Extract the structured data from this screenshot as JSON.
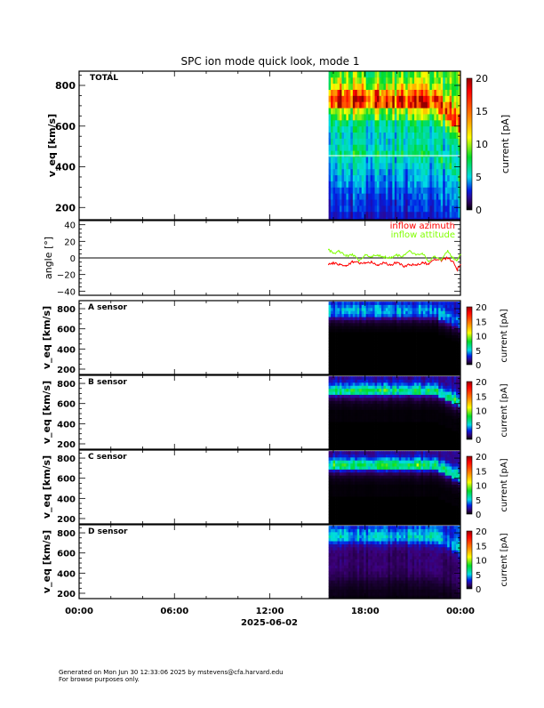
{
  "chart_data": {
    "type": "heatmap",
    "title": "SPC ion mode quick look, mode 1",
    "date_label": "2025-06-02",
    "x_ticks": [
      "00:00",
      "06:00",
      "12:00",
      "18:00",
      "00:00"
    ],
    "x_range_hours": [
      0,
      24
    ],
    "data_start_hour": 15.7,
    "velocity_bins_kms": [
      165,
      195,
      225,
      255,
      285,
      315,
      345,
      375,
      405,
      435,
      465,
      495,
      525,
      555,
      585,
      615,
      645,
      675,
      705,
      735,
      765,
      795,
      825,
      855
    ],
    "colorbar": {
      "label": "current [pA]",
      "range": [
        0,
        20
      ],
      "ticks": [
        "0",
        "5",
        "10",
        "15",
        "20"
      ]
    },
    "panels": [
      {
        "label": "TOTAL",
        "ylabel": "v_eq [km/s]",
        "yrange": [
          140,
          870
        ],
        "ticks": [
          "200",
          "400",
          "600",
          "800"
        ],
        "profile_pA": [
          2.5,
          3,
          3,
          3.3,
          3.6,
          4,
          4.3,
          4.6,
          5,
          5.3,
          6.5,
          5.8,
          5.5,
          5.5,
          6,
          6.5,
          8.5,
          10,
          16,
          16.5,
          14,
          11,
          9.5,
          8.5
        ]
      },
      {
        "label": "A sensor",
        "ylabel": "v_eq [km/s]",
        "yrange": [
          147,
          880
        ],
        "ticks": [
          "200",
          "400",
          "600",
          "800"
        ],
        "profile_pA": [
          0,
          0,
          0,
          0,
          0,
          0,
          0,
          0,
          0,
          0,
          0,
          0,
          0,
          0,
          0.1,
          0.2,
          0.4,
          0.8,
          1.8,
          3.5,
          4.2,
          4.5,
          3.8,
          3
        ]
      },
      {
        "label": "B sensor",
        "ylabel": "v_eq [km/s]",
        "yrange": [
          147,
          880
        ],
        "ticks": [
          "200",
          "400",
          "600",
          "800"
        ],
        "profile_pA": [
          0,
          0,
          0,
          0,
          0,
          0,
          0,
          0,
          0,
          0.1,
          0.1,
          0.1,
          0.1,
          0.2,
          0.3,
          0.5,
          1,
          2,
          6,
          7,
          5,
          3.5,
          2.5,
          2
        ]
      },
      {
        "label": "C sensor",
        "ylabel": "v_eq [km/s]",
        "yrange": [
          147,
          880
        ],
        "ticks": [
          "200",
          "400",
          "600",
          "800"
        ],
        "profile_pA": [
          0,
          0,
          0,
          0,
          0,
          0,
          0,
          0,
          0,
          0.1,
          0.1,
          0.1,
          0.1,
          0.2,
          0.3,
          0.5,
          1,
          2.5,
          6.5,
          7.5,
          6,
          4,
          2.5,
          2
        ]
      },
      {
        "label": "D sensor",
        "ylabel": "v_eq [km/s]",
        "yrange": [
          147,
          880
        ],
        "ticks": [
          "200",
          "400",
          "600",
          "800"
        ],
        "profile_pA": [
          0.2,
          0.3,
          0.3,
          0.4,
          0.5,
          0.6,
          0.8,
          1,
          1.1,
          1.2,
          1.3,
          1.3,
          1.3,
          1.3,
          1.3,
          1.4,
          1.6,
          2,
          3,
          4.5,
          5,
          4.5,
          4,
          3.2
        ]
      }
    ],
    "angle_panel": {
      "ylabel": "angle [°]",
      "yrange": [
        -45,
        45
      ],
      "ticks": [
        "-40",
        "-20",
        "0",
        "20",
        "40"
      ],
      "series": [
        {
          "name": "inflow azimuth",
          "color": "#ff0000",
          "hours": [
            15.7,
            16.0,
            16.4,
            16.8,
            17.2,
            17.6,
            18.0,
            18.4,
            18.8,
            19.2,
            19.6,
            20.0,
            20.4,
            20.8,
            21.2,
            21.6,
            22.0,
            22.4,
            22.8,
            23.2,
            23.5,
            23.8,
            24.0
          ],
          "values": [
            -8,
            -6,
            -8,
            -10,
            -5,
            -6,
            -7,
            -5,
            -8,
            -6,
            -9,
            -5,
            -10,
            -8,
            -9,
            -6,
            -7,
            -2,
            -3,
            0,
            -4,
            -14,
            -8
          ]
        },
        {
          "name": "inflow attitude",
          "color": "#80ff00",
          "hours": [
            15.7,
            16.0,
            16.4,
            16.8,
            17.2,
            17.6,
            18.0,
            18.4,
            18.8,
            19.2,
            19.6,
            20.0,
            20.4,
            20.8,
            21.2,
            21.6,
            22.0,
            22.4,
            22.8,
            23.2,
            23.5,
            23.8,
            24.0
          ],
          "values": [
            10,
            6,
            8,
            2,
            5,
            -4,
            4,
            2,
            3,
            1,
            0,
            3,
            2,
            9,
            4,
            6,
            -4,
            2,
            -3,
            9,
            0,
            -3,
            4
          ]
        }
      ]
    }
  },
  "footer": {
    "generated": "Generated on Mon Jun 30 12:33:06 2025 by mstevens@cfa.harvard.edu",
    "note": "For browse purposes only."
  }
}
